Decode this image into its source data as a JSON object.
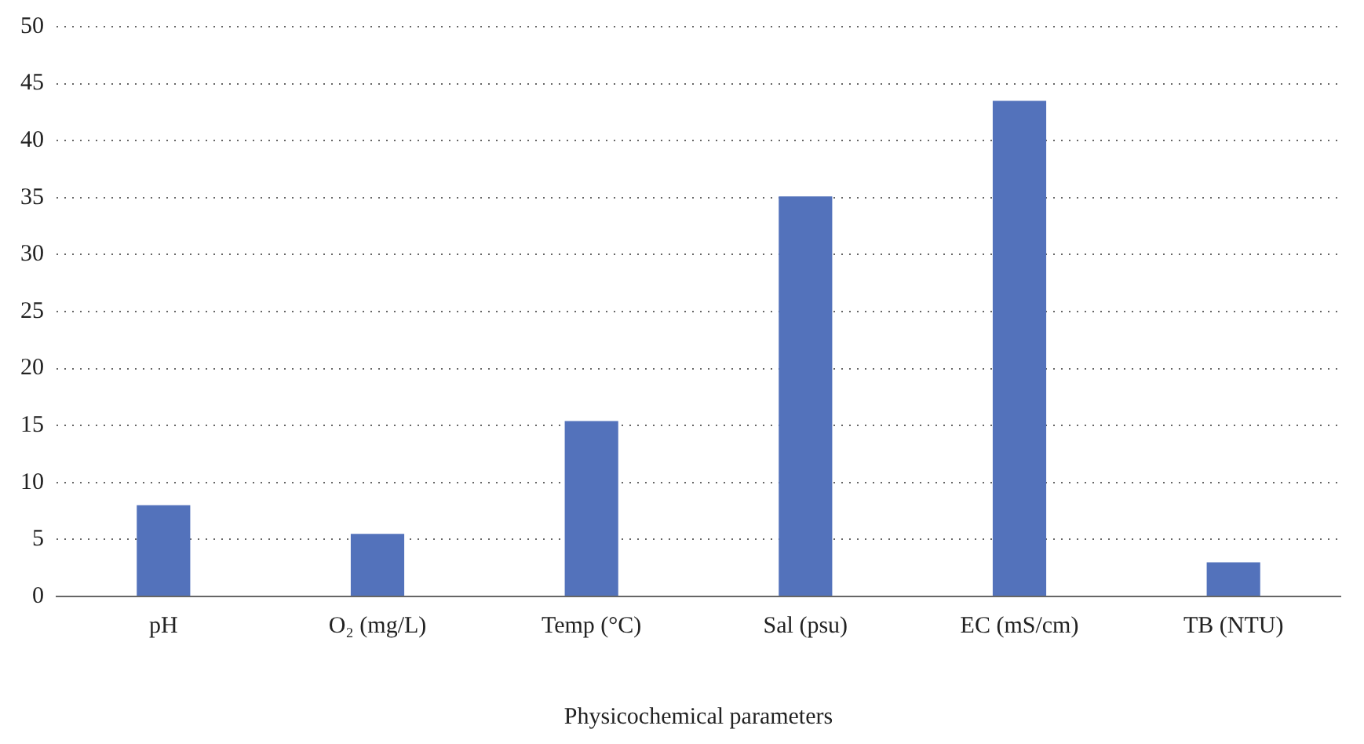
{
  "chart_data": {
    "type": "bar",
    "xlabel": "Physicochemical parameters",
    "categories": [
      "pH",
      "O₂ (mg/L)",
      "Temp (°C)",
      "Sal (psu)",
      "EC (mS/cm)",
      "TB (NTU)"
    ],
    "values": [
      8,
      5.5,
      15.4,
      35.1,
      43.5,
      3
    ],
    "color": "#5372bb",
    "ylim": [
      0,
      50
    ],
    "yticks": [
      0,
      5,
      10,
      15,
      20,
      25,
      30,
      35,
      40,
      45,
      50
    ],
    "grid": "y"
  }
}
